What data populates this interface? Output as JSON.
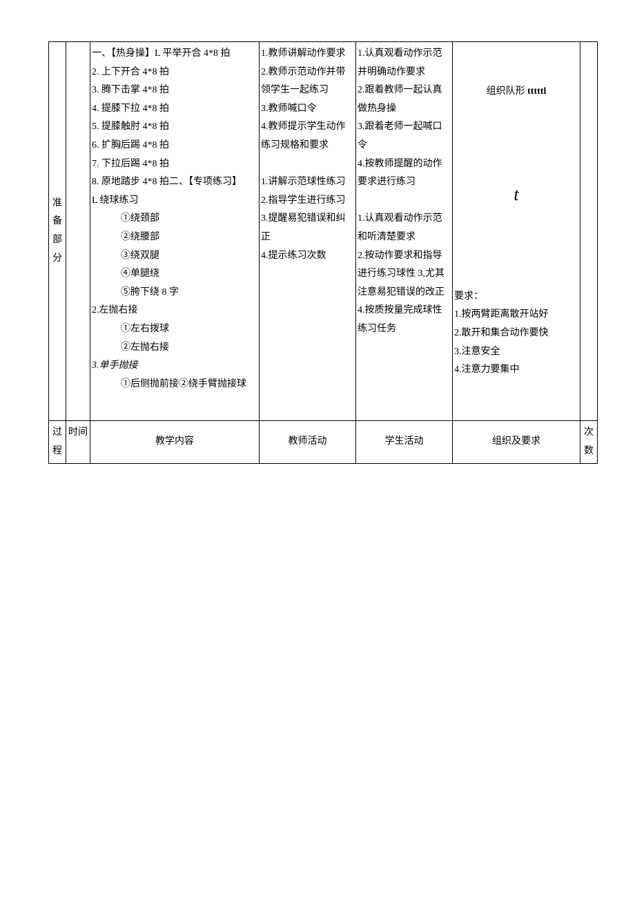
{
  "row1": {
    "phase": "准 备部分",
    "content": {
      "l1": "一、【热身操】L 平举开合 4*8 拍",
      "l2": "2. 上下开合 4*8 拍",
      "l3": "3. 腾下击掌 4*8 拍",
      "l4": "4. 提膝下拉 4*8 拍",
      "l5": "5. 提膝触肘 4*8 拍",
      "l6": "6. 扩胸后踢 4*8 拍",
      "l7": "7. 下拉后踢 4*8 拍",
      "l8": "8. 原地踏步 4*8 拍二、【专项练习】",
      "l9": "L 绕球练习",
      "l10": "①绕颈部",
      "l11": "②绕腰部",
      "l12": "③绕双腿",
      "l13": "④单腿绕",
      "l14": "⑤胯下绕 8 字",
      "l15": "2.左抛右接",
      "l16": "①左右拨球",
      "l17": "②左抛右接",
      "l18": "3.单手抛接",
      "l19": "①后侧抛前接②绕手臂抛接球"
    },
    "teacher": {
      "t1": "1.教师讲解动作要求",
      "t2": "2.教师示范动作并带领学生一起练习",
      "t3": "3.教师喊口令",
      "t4": "4.教师提示学生动作练习规格和要求",
      "s1": "1.讲解示范球性练习",
      "s2": "2.指导学生进行练习",
      "s3": "3.提醒易犯错误和纠正",
      "s4": "4.提示练习次数"
    },
    "student": {
      "t1": "1.认真观看动作示范并明确动作要求",
      "t2": "2.跟着教师一起认真做热身操",
      "t3": "3.跟着老师一起喊口令",
      "t4": "4.按教师提醒的动作要求进行练习",
      "s1": "1.认真观看动作示范和听清楚要求",
      "s2": "2.按动作要求和指导进行练习球性 3,尤其注意易犯错误的改正",
      "s3": "4.按质按量完成球性练习任务"
    },
    "org": {
      "title": "组织队形 tttttl",
      "symbol": "t",
      "reqTitle": "要求：",
      "r1": "1.按两臂距离散开站好",
      "r2": "2.散开和集合动作要快",
      "r3": "3.注意安全",
      "r4": "4.注意力要集中"
    }
  },
  "headers": {
    "phase": "过程",
    "time": "时间",
    "content": "教学内容",
    "teacher": "教师活动",
    "student": "学生活动",
    "org": "组织及要求",
    "count": "次数"
  }
}
